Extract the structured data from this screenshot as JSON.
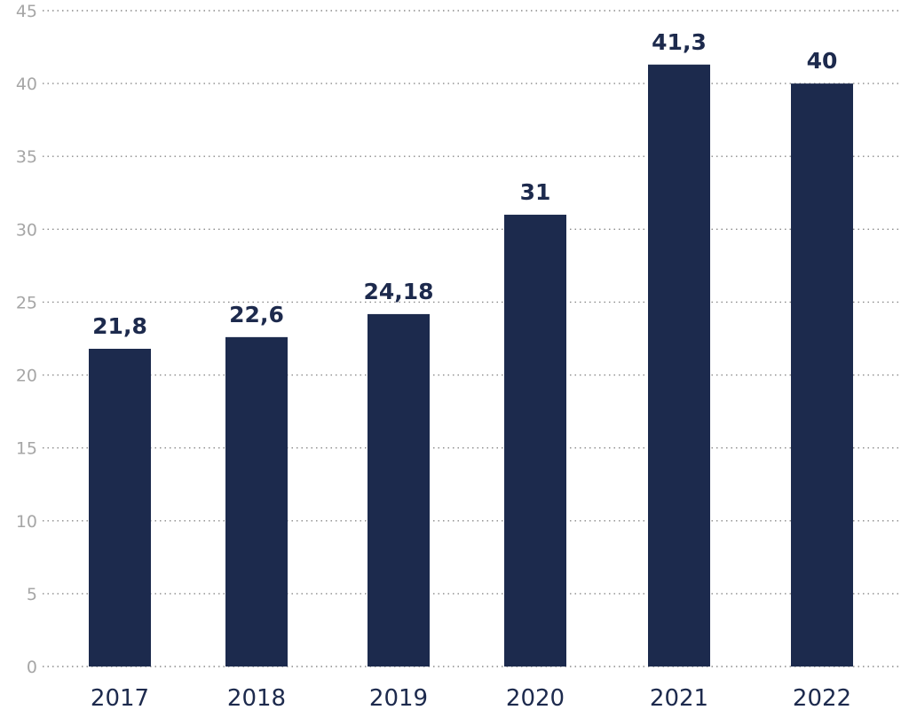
{
  "chart_data": {
    "type": "bar",
    "categories": [
      "2017",
      "2018",
      "2019",
      "2020",
      "2021",
      "2022"
    ],
    "values": [
      21.8,
      22.6,
      24.18,
      31,
      41.3,
      40
    ],
    "value_labels": [
      "21,8",
      "22,6",
      "24,18",
      "31",
      "41,3",
      "40"
    ],
    "y_ticks": [
      "0",
      "5",
      "10",
      "15",
      "20",
      "25",
      "30",
      "35",
      "40",
      "45"
    ],
    "ylim": [
      0,
      45
    ],
    "grid": true,
    "bar_color": "#1c2a4d",
    "title": "",
    "xlabel": "",
    "ylabel": ""
  }
}
